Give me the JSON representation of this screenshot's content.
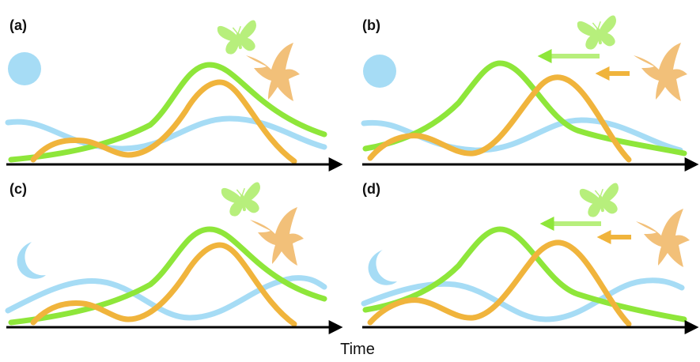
{
  "figure": {
    "x_axis_label": "Time",
    "colors": {
      "environment": "#a6dcf5",
      "prey": "#8ee63a",
      "predator": "#f0b43c",
      "axis": "#000000"
    },
    "panels": [
      {
        "label": "(a)",
        "cycle_icon": "sun-icon",
        "shift_arrows": false
      },
      {
        "label": "(b)",
        "cycle_icon": "sun-icon",
        "shift_arrows": true
      },
      {
        "label": "(c)",
        "cycle_icon": "moon-icon",
        "shift_arrows": false
      },
      {
        "label": "(d)",
        "cycle_icon": "moon-icon",
        "shift_arrows": true
      }
    ]
  }
}
